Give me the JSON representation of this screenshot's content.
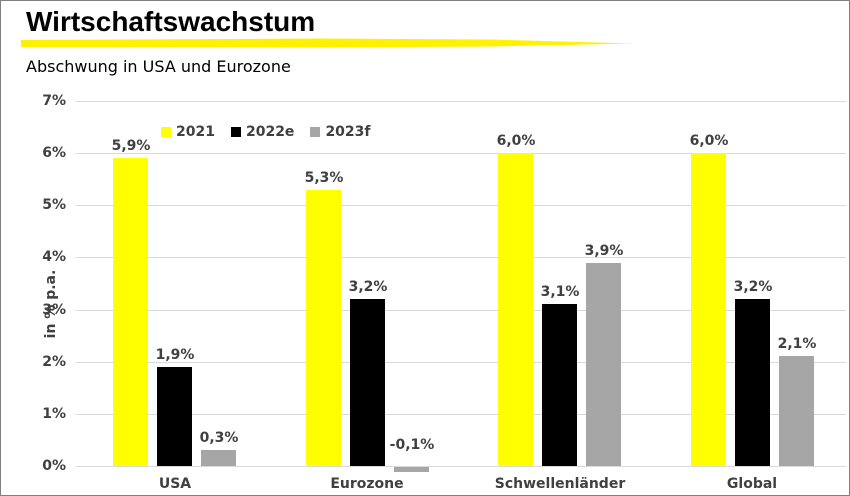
{
  "header": {
    "title": "Wirtschaftswachstum",
    "subtitle": "Abschwung in USA und Eurozone"
  },
  "colors": {
    "accent_underline": "#FFF100",
    "axis_text": "#404040",
    "gridline": "#D9D9D9",
    "frame_border": "#808080",
    "series_2021": "#FFFF00",
    "series_2022e": "#000000",
    "series_2023f": "#A6A6A6"
  },
  "chart_data": {
    "type": "bar",
    "title": "Wirtschaftswachstum",
    "subtitle": "Abschwung in USA und Eurozone",
    "xlabel": "",
    "ylabel": "in % p.a.",
    "ylim": [
      0,
      7
    ],
    "ytick_step": 1,
    "ytick_suffix": "%",
    "grid": true,
    "legend_position": "top",
    "categories": [
      "USA",
      "Eurozone",
      "Schwellenländer",
      "Global"
    ],
    "series": [
      {
        "name": "2021",
        "color": "#FFFF00",
        "values": [
          5.9,
          5.3,
          6.0,
          6.0
        ],
        "labels": [
          "5,9%",
          "5,3%",
          "6,0%",
          "6,0%"
        ]
      },
      {
        "name": "2022e",
        "color": "#000000",
        "values": [
          1.9,
          3.2,
          3.1,
          3.2
        ],
        "labels": [
          "1,9%",
          "3,2%",
          "3,1%",
          "3,2%"
        ]
      },
      {
        "name": "2023f",
        "color": "#A6A6A6",
        "values": [
          0.3,
          -0.1,
          3.9,
          2.1
        ],
        "labels": [
          "0,3%",
          "-0,1%",
          "3,9%",
          "2,1%"
        ]
      }
    ]
  }
}
